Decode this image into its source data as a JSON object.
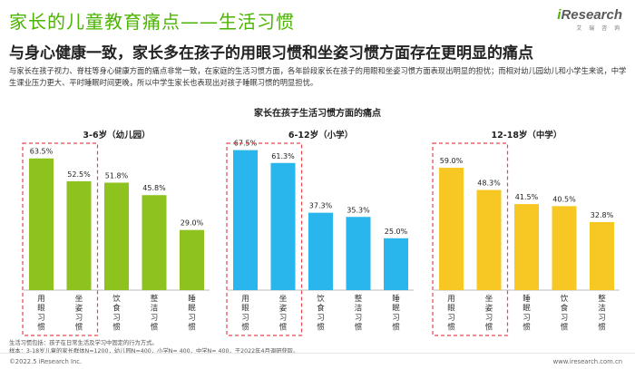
{
  "header": {
    "title": "家长的儿童教育痛点——生活习惯",
    "subtitle": "与身心健康一致，家长多在孩子的用眼习惯和坐姿习惯方面存在更明显的痛点",
    "description": "与家长在孩子视力、脊柱等身心健康方面的痛点非常一致，在家庭的生活习惯方面，各年龄段家长在孩子的用眼和坐姿习惯方面表现出明显的担忧；而相对幼儿园幼儿和小学生来说，中学生课业压力更大、平时睡眠时间更晚，所以中学生家长也表现出对孩子睡眠习惯的明显担忧。"
  },
  "logo": {
    "i": "i",
    "rest": "Research",
    "sub": "艾 瑞 咨 询"
  },
  "footer": {
    "note1": "生活习惯包括：孩子在日常生活及学习中固定的行为方式。",
    "note2": "样本：3-18岁儿童的家长群体N=1200，幼儿园N=400，小学N= 400，中学N= 400，于2022年4月调研获取。",
    "copyright": "©2022.5 iResearch Inc.",
    "site": "www.iresearch.com.cn"
  },
  "chart_data": {
    "type": "bar",
    "title": "家长在孩子生活习惯方面的痛点",
    "ylim": [
      0,
      80
    ],
    "groups": [
      {
        "name": "3-6岁（幼儿园）",
        "color": "#8dc21f",
        "categories": [
          "用眼习惯",
          "坐姿习惯",
          "饮食习惯",
          "整洁习惯",
          "睡眠习惯"
        ],
        "values": [
          63.5,
          52.5,
          51.8,
          45.8,
          29.0
        ],
        "labels": [
          "63.5%",
          "52.5%",
          "51.8%",
          "45.8%",
          "29.0%"
        ],
        "highlighted": [
          0,
          1
        ]
      },
      {
        "name": "6-12岁（小学）",
        "color": "#29b6ec",
        "categories": [
          "用眼习惯",
          "坐姿习惯",
          "饮食习惯",
          "整洁习惯",
          "睡眠习惯"
        ],
        "values": [
          67.5,
          61.3,
          37.3,
          35.3,
          25.0
        ],
        "labels": [
          "67.5%",
          "61.3%",
          "37.3%",
          "35.3%",
          "25.0%"
        ],
        "highlighted": [
          0,
          1
        ]
      },
      {
        "name": "12-18岁（中学）",
        "color": "#f7c823",
        "categories": [
          "用眼习惯",
          "坐姿习惯",
          "睡眠习惯",
          "饮食习惯",
          "整洁习惯"
        ],
        "values": [
          59.0,
          48.3,
          41.5,
          40.5,
          32.8
        ],
        "labels": [
          "59.0%",
          "48.3%",
          "41.5%",
          "40.5%",
          "32.8%"
        ],
        "highlighted": [
          0,
          1
        ]
      }
    ],
    "highlight_color": "#e5474f"
  }
}
